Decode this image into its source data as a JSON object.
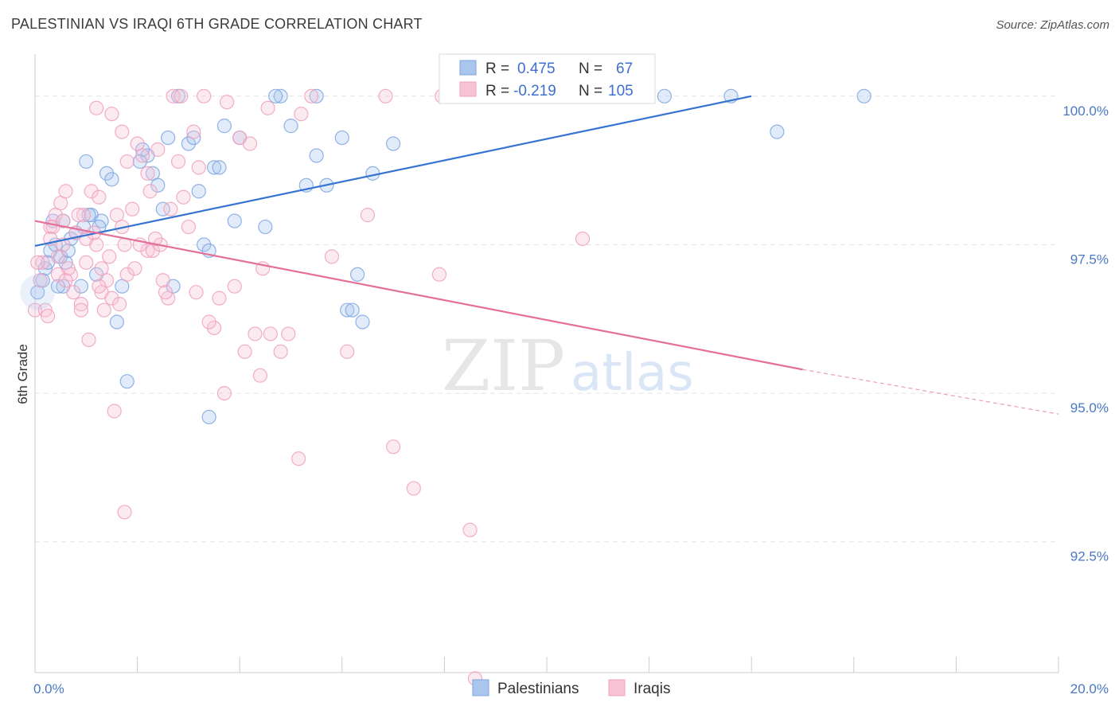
{
  "chart_data": {
    "type": "scatter",
    "title": "PALESTINIAN VS IRAQI 6TH GRADE CORRELATION CHART",
    "source": "Source: ZipAtlas.com",
    "xlabel": "",
    "ylabel": "6th Grade",
    "xlim": [
      0.0,
      20.0
    ],
    "ylim": [
      90.3,
      100.6
    ],
    "x_tick_labels": [
      "0.0%",
      "20.0%"
    ],
    "y_ticks": [
      {
        "value": 100.0,
        "label": "100.0%"
      },
      {
        "value": 97.5,
        "label": "97.5%"
      },
      {
        "value": 95.0,
        "label": "95.0%"
      },
      {
        "value": 92.5,
        "label": "92.5%"
      }
    ],
    "watermark": {
      "part1": "ZIP",
      "part2": "atlas"
    },
    "legend": {
      "rows": [
        {
          "r_label": "R =",
          "r_value": "0.475",
          "n_label": "N =",
          "n_value": "67"
        },
        {
          "r_label": "R =",
          "r_value": "-0.219",
          "n_label": "N =",
          "n_value": "105"
        }
      ]
    },
    "series": [
      {
        "name": "Palestinians",
        "color": "#7ea6e0",
        "fill": "#aac6ee",
        "line_color": "#3574d0",
        "trend": {
          "x0": 0.0,
          "y0": 97.48,
          "x1": 14.0,
          "y1": 100.0
        },
        "points": [
          [
            0.05,
            96.7
          ],
          [
            0.2,
            97.1
          ],
          [
            0.3,
            97.4
          ],
          [
            0.35,
            97.9
          ],
          [
            0.4,
            97.5
          ],
          [
            0.5,
            97.3
          ],
          [
            0.55,
            96.8
          ],
          [
            0.6,
            97.2
          ],
          [
            0.7,
            97.6
          ],
          [
            0.8,
            97.7
          ],
          [
            0.9,
            96.8
          ],
          [
            0.95,
            97.8
          ],
          [
            1.0,
            98.9
          ],
          [
            1.1,
            98.0
          ],
          [
            1.2,
            97.0
          ],
          [
            1.3,
            97.9
          ],
          [
            1.4,
            98.7
          ],
          [
            1.5,
            98.6
          ],
          [
            1.6,
            96.2
          ],
          [
            1.7,
            96.8
          ],
          [
            1.8,
            95.2
          ],
          [
            2.2,
            99.0
          ],
          [
            2.3,
            98.7
          ],
          [
            2.5,
            98.1
          ],
          [
            2.6,
            99.3
          ],
          [
            2.7,
            96.8
          ],
          [
            2.8,
            100.0
          ],
          [
            3.0,
            99.2
          ],
          [
            3.2,
            98.4
          ],
          [
            3.3,
            97.5
          ],
          [
            3.4,
            97.4
          ],
          [
            3.5,
            98.8
          ],
          [
            3.6,
            98.8
          ],
          [
            3.7,
            99.5
          ],
          [
            3.9,
            97.9
          ],
          [
            4.0,
            99.3
          ],
          [
            4.5,
            97.8
          ],
          [
            4.8,
            100.0
          ],
          [
            5.0,
            99.5
          ],
          [
            5.3,
            98.5
          ],
          [
            5.5,
            99.0
          ],
          [
            5.7,
            98.5
          ],
          [
            6.0,
            99.3
          ],
          [
            6.1,
            96.4
          ],
          [
            6.2,
            96.4
          ],
          [
            6.3,
            97.0
          ],
          [
            6.4,
            96.2
          ],
          [
            6.6,
            98.7
          ],
          [
            7.0,
            99.2
          ],
          [
            3.4,
            94.6
          ],
          [
            0.25,
            97.2
          ],
          [
            0.65,
            97.4
          ],
          [
            1.25,
            97.8
          ],
          [
            2.1,
            99.1
          ],
          [
            2.4,
            98.5
          ],
          [
            3.1,
            99.3
          ],
          [
            4.7,
            100.0
          ],
          [
            5.5,
            100.0
          ],
          [
            12.3,
            100.0
          ],
          [
            13.6,
            100.0
          ],
          [
            14.5,
            99.4
          ],
          [
            16.2,
            100.0
          ],
          [
            0.15,
            96.9
          ],
          [
            0.45,
            96.8
          ],
          [
            1.05,
            98.0
          ],
          [
            0.55,
            97.9
          ],
          [
            2.05,
            98.9
          ]
        ]
      },
      {
        "name": "Iraqis",
        "color": "#f0a0bd",
        "fill": "#f7c4d6",
        "line_color": "#e4709a",
        "trend": {
          "x0": 0.0,
          "y0": 97.9,
          "x1": 15.0,
          "y1": 95.4
        },
        "trend_dashed": {
          "x0": 15.0,
          "y0": 95.4,
          "x1": 20.0,
          "y1": 94.65
        },
        "points": [
          [
            0.0,
            96.4
          ],
          [
            0.1,
            96.9
          ],
          [
            0.15,
            97.2
          ],
          [
            0.2,
            96.4
          ],
          [
            0.3,
            97.8
          ],
          [
            0.4,
            98.0
          ],
          [
            0.45,
            97.3
          ],
          [
            0.5,
            98.2
          ],
          [
            0.55,
            97.5
          ],
          [
            0.6,
            98.4
          ],
          [
            0.7,
            97.0
          ],
          [
            0.75,
            96.7
          ],
          [
            0.8,
            97.7
          ],
          [
            0.9,
            96.5
          ],
          [
            0.95,
            98.0
          ],
          [
            1.0,
            97.2
          ],
          [
            1.1,
            98.4
          ],
          [
            1.2,
            97.5
          ],
          [
            1.25,
            98.3
          ],
          [
            1.3,
            96.7
          ],
          [
            1.35,
            96.4
          ],
          [
            1.4,
            96.9
          ],
          [
            1.5,
            96.6
          ],
          [
            1.6,
            98.0
          ],
          [
            1.7,
            97.8
          ],
          [
            1.75,
            97.5
          ],
          [
            1.8,
            97.0
          ],
          [
            1.9,
            98.1
          ],
          [
            2.0,
            99.2
          ],
          [
            2.1,
            99.0
          ],
          [
            2.2,
            97.4
          ],
          [
            2.3,
            97.4
          ],
          [
            2.4,
            99.1
          ],
          [
            2.5,
            96.9
          ],
          [
            2.6,
            96.6
          ],
          [
            2.7,
            100.0
          ],
          [
            2.8,
            98.9
          ],
          [
            2.9,
            98.3
          ],
          [
            3.0,
            97.8
          ],
          [
            3.1,
            99.4
          ],
          [
            3.2,
            98.8
          ],
          [
            3.3,
            100.0
          ],
          [
            3.5,
            96.1
          ],
          [
            3.6,
            96.6
          ],
          [
            3.7,
            95.0
          ],
          [
            3.9,
            96.8
          ],
          [
            4.0,
            99.3
          ],
          [
            4.1,
            95.7
          ],
          [
            4.3,
            96.0
          ],
          [
            4.4,
            95.3
          ],
          [
            4.6,
            96.0
          ],
          [
            4.8,
            95.7
          ],
          [
            5.2,
            99.7
          ],
          [
            5.4,
            100.0
          ],
          [
            5.8,
            97.3
          ],
          [
            6.1,
            95.7
          ],
          [
            6.5,
            98.0
          ],
          [
            7.0,
            94.1
          ],
          [
            7.4,
            93.4
          ],
          [
            7.9,
            97.0
          ],
          [
            8.5,
            92.7
          ],
          [
            8.6,
            90.2
          ],
          [
            10.7,
            97.6
          ],
          [
            1.2,
            99.8
          ],
          [
            1.5,
            99.7
          ],
          [
            1.7,
            99.4
          ],
          [
            1.8,
            98.9
          ],
          [
            2.2,
            98.7
          ],
          [
            0.35,
            97.8
          ],
          [
            0.55,
            97.9
          ],
          [
            1.0,
            97.6
          ],
          [
            1.3,
            97.1
          ],
          [
            0.65,
            97.1
          ],
          [
            0.85,
            98.0
          ],
          [
            1.15,
            97.7
          ],
          [
            1.45,
            97.3
          ],
          [
            1.95,
            97.1
          ],
          [
            2.25,
            98.4
          ],
          [
            2.45,
            97.5
          ],
          [
            2.65,
            98.1
          ],
          [
            2.85,
            100.0
          ],
          [
            3.15,
            96.7
          ],
          [
            3.4,
            96.2
          ],
          [
            3.75,
            99.9
          ],
          [
            4.2,
            99.2
          ],
          [
            4.55,
            99.8
          ],
          [
            4.95,
            96.0
          ],
          [
            5.15,
            93.9
          ],
          [
            6.85,
            100.0
          ],
          [
            7.95,
            100.0
          ],
          [
            0.25,
            96.3
          ],
          [
            0.45,
            97.0
          ],
          [
            0.9,
            96.4
          ],
          [
            1.05,
            95.9
          ],
          [
            1.55,
            94.7
          ],
          [
            1.75,
            93.0
          ],
          [
            2.05,
            97.5
          ],
          [
            2.35,
            97.6
          ],
          [
            0.05,
            97.2
          ],
          [
            0.3,
            97.6
          ],
          [
            0.6,
            96.9
          ],
          [
            1.25,
            96.8
          ],
          [
            1.65,
            96.5
          ],
          [
            2.55,
            96.7
          ],
          [
            4.45,
            97.1
          ]
        ]
      }
    ]
  }
}
